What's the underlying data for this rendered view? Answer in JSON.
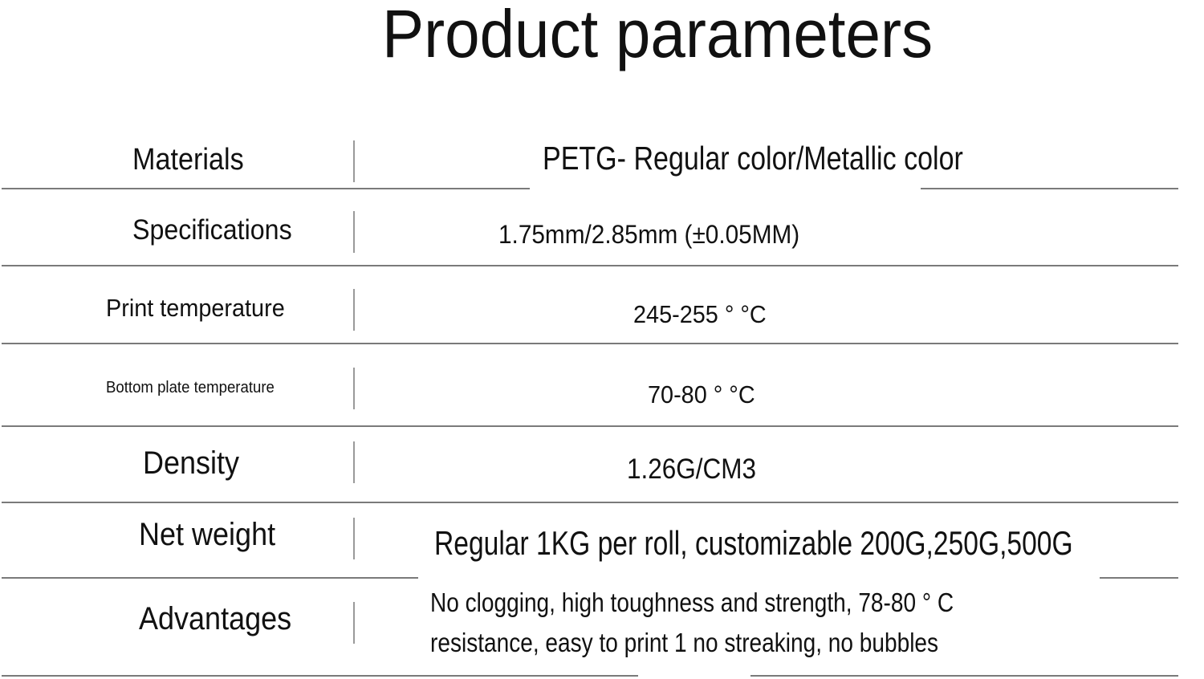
{
  "title": "Product parameters",
  "rows": [
    {
      "label": "Materials",
      "value": "PETG- Regular color/Metallic color"
    },
    {
      "label": "Specifications",
      "value": "1.75mm/2.85mm (±0.05MM)"
    },
    {
      "label": "Print temperature",
      "value": "245-255 ° °C"
    },
    {
      "label": "Bottom plate temperature",
      "value": "70-80 ° °C"
    },
    {
      "label": "Density",
      "value": "1.26G/CM3"
    },
    {
      "label": "Net weight",
      "value": "Regular 1KG per roll, customizable 200G,250G,500G"
    },
    {
      "label": "Advantages",
      "value_lines": [
        "No clogging, high toughness and strength, 78-80 ° C",
        "resistance, easy to print 1 no streaking, no bubbles"
      ]
    }
  ]
}
